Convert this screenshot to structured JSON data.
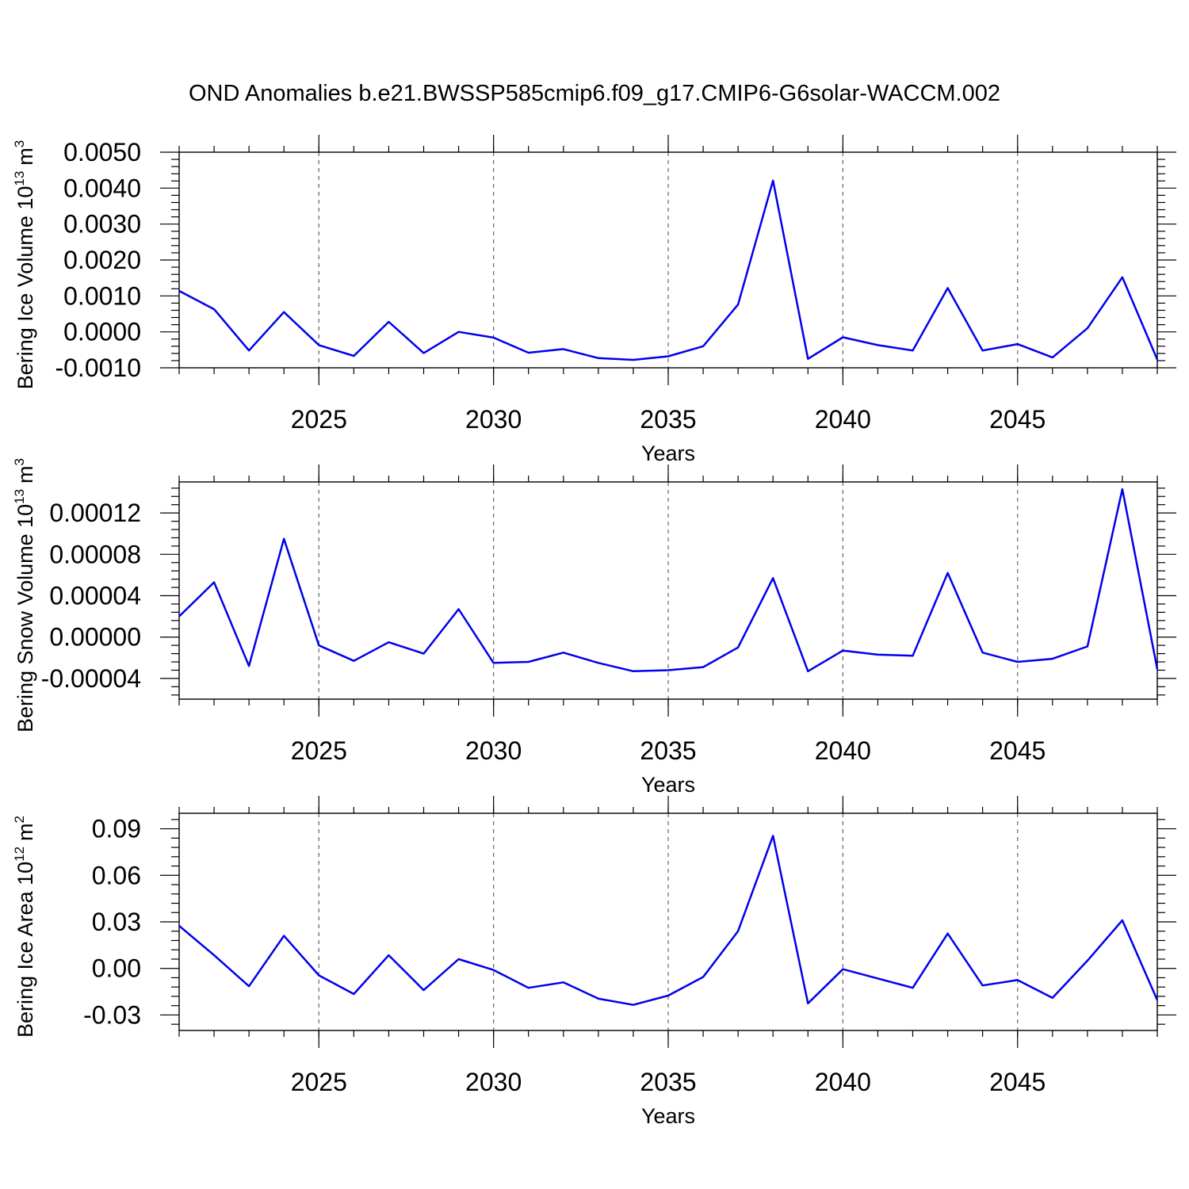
{
  "figure": {
    "title": "OND Anomalies b.e21.BWSSP585cmip6.f09_g17.CMIP6-G6solar-WACCM.002",
    "line_color": "#0000ee"
  },
  "chart_data": [
    {
      "type": "line",
      "title": "",
      "xlabel": "Years",
      "ylabel": "Bering Ice Volume 10",
      "ylabel_exponent": "13",
      "ylabel_unit": "m",
      "ylabel_unit_exponent": "3",
      "xlim": [
        2021,
        2049
      ],
      "ylim": [
        -0.001,
        0.005
      ],
      "x_ticks": [
        2025,
        2030,
        2035,
        2040,
        2045
      ],
      "x_tick_labels": [
        "2025",
        "2030",
        "2035",
        "2040",
        "2045"
      ],
      "y_ticks": [
        -0.001,
        0.0,
        0.001,
        0.002,
        0.003,
        0.004,
        0.005
      ],
      "y_tick_labels": [
        "-0.0010",
        "0.0000",
        "0.0010",
        "0.0020",
        "0.0030",
        "0.0040",
        "0.0050"
      ],
      "grid": "vertical dashed at x ticks",
      "x": [
        2021,
        2022,
        2023,
        2024,
        2025,
        2026,
        2027,
        2028,
        2029,
        2030,
        2031,
        2032,
        2033,
        2034,
        2035,
        2036,
        2037,
        2038,
        2039,
        2040,
        2041,
        2042,
        2043,
        2044,
        2045,
        2046,
        2047,
        2048,
        2049
      ],
      "values": [
        0.00114,
        0.00063,
        -0.00052,
        0.00055,
        -0.00037,
        -0.00067,
        0.00028,
        -0.00059,
        0.0,
        -0.00016,
        -0.00058,
        -0.00048,
        -0.00073,
        -0.00078,
        -0.00068,
        -0.0004,
        0.00076,
        0.00421,
        -0.00075,
        -0.00015,
        -0.00037,
        -0.00052,
        0.00122,
        -0.00052,
        -0.00034,
        -0.00071,
        0.0001,
        0.00152,
        -0.00077
      ]
    },
    {
      "type": "line",
      "title": "",
      "xlabel": "Years",
      "ylabel": "Bering Snow Volume 10",
      "ylabel_exponent": "13",
      "ylabel_unit": "m",
      "ylabel_unit_exponent": "3",
      "xlim": [
        2021,
        2049
      ],
      "ylim": [
        -6e-05,
        0.00015
      ],
      "x_ticks": [
        2025,
        2030,
        2035,
        2040,
        2045
      ],
      "x_tick_labels": [
        "2025",
        "2030",
        "2035",
        "2040",
        "2045"
      ],
      "y_ticks": [
        -4e-05,
        0.0,
        4e-05,
        8e-05,
        0.00012
      ],
      "y_tick_labels": [
        "-0.00004",
        "0.00000",
        "0.00004",
        "0.00008",
        "0.00012"
      ],
      "grid": "vertical dashed at x ticks",
      "x": [
        2021,
        2022,
        2023,
        2024,
        2025,
        2026,
        2027,
        2028,
        2029,
        2030,
        2031,
        2032,
        2033,
        2034,
        2035,
        2036,
        2037,
        2038,
        2039,
        2040,
        2041,
        2042,
        2043,
        2044,
        2045,
        2046,
        2047,
        2048,
        2049
      ],
      "values": [
        2e-05,
        5.3e-05,
        -2.8e-05,
        9.5e-05,
        -8e-06,
        -2.3e-05,
        -5e-06,
        -1.6e-05,
        2.7e-05,
        -2.5e-05,
        -2.4e-05,
        -1.5e-05,
        -2.5e-05,
        -3.3e-05,
        -3.2e-05,
        -2.9e-05,
        -1e-05,
        5.7e-05,
        -3.3e-05,
        -1.3e-05,
        -1.7e-05,
        -1.8e-05,
        6.2e-05,
        -1.5e-05,
        -2.4e-05,
        -2.1e-05,
        -9e-06,
        0.000143,
        -3.1e-05
      ]
    },
    {
      "type": "line",
      "title": "",
      "xlabel": "Years",
      "ylabel": "Bering Ice Area 10",
      "ylabel_exponent": "12",
      "ylabel_unit": "m",
      "ylabel_unit_exponent": "2",
      "xlim": [
        2021,
        2049
      ],
      "ylim": [
        -0.04,
        0.1
      ],
      "x_ticks": [
        2025,
        2030,
        2035,
        2040,
        2045
      ],
      "x_tick_labels": [
        "2025",
        "2030",
        "2035",
        "2040",
        "2045"
      ],
      "y_ticks": [
        -0.03,
        0.0,
        0.03,
        0.06,
        0.09
      ],
      "y_tick_labels": [
        "-0.03",
        "0.00",
        "0.03",
        "0.06",
        "0.09"
      ],
      "grid": "vertical dashed at x ticks",
      "x": [
        2021,
        2022,
        2023,
        2024,
        2025,
        2026,
        2027,
        2028,
        2029,
        2030,
        2031,
        2032,
        2033,
        2034,
        2035,
        2036,
        2037,
        2038,
        2039,
        2040,
        2041,
        2042,
        2043,
        2044,
        2045,
        2046,
        2047,
        2048,
        2049
      ],
      "values": [
        0.0275,
        0.0085,
        -0.0115,
        0.021,
        -0.0045,
        -0.0165,
        0.0085,
        -0.014,
        0.006,
        -0.001,
        -0.0125,
        -0.009,
        -0.0195,
        -0.0235,
        -0.0175,
        -0.0055,
        0.024,
        0.0855,
        -0.0225,
        -0.0005,
        -0.0065,
        -0.0125,
        0.0225,
        -0.011,
        -0.0075,
        -0.019,
        0.005,
        0.031,
        -0.0205
      ]
    }
  ]
}
